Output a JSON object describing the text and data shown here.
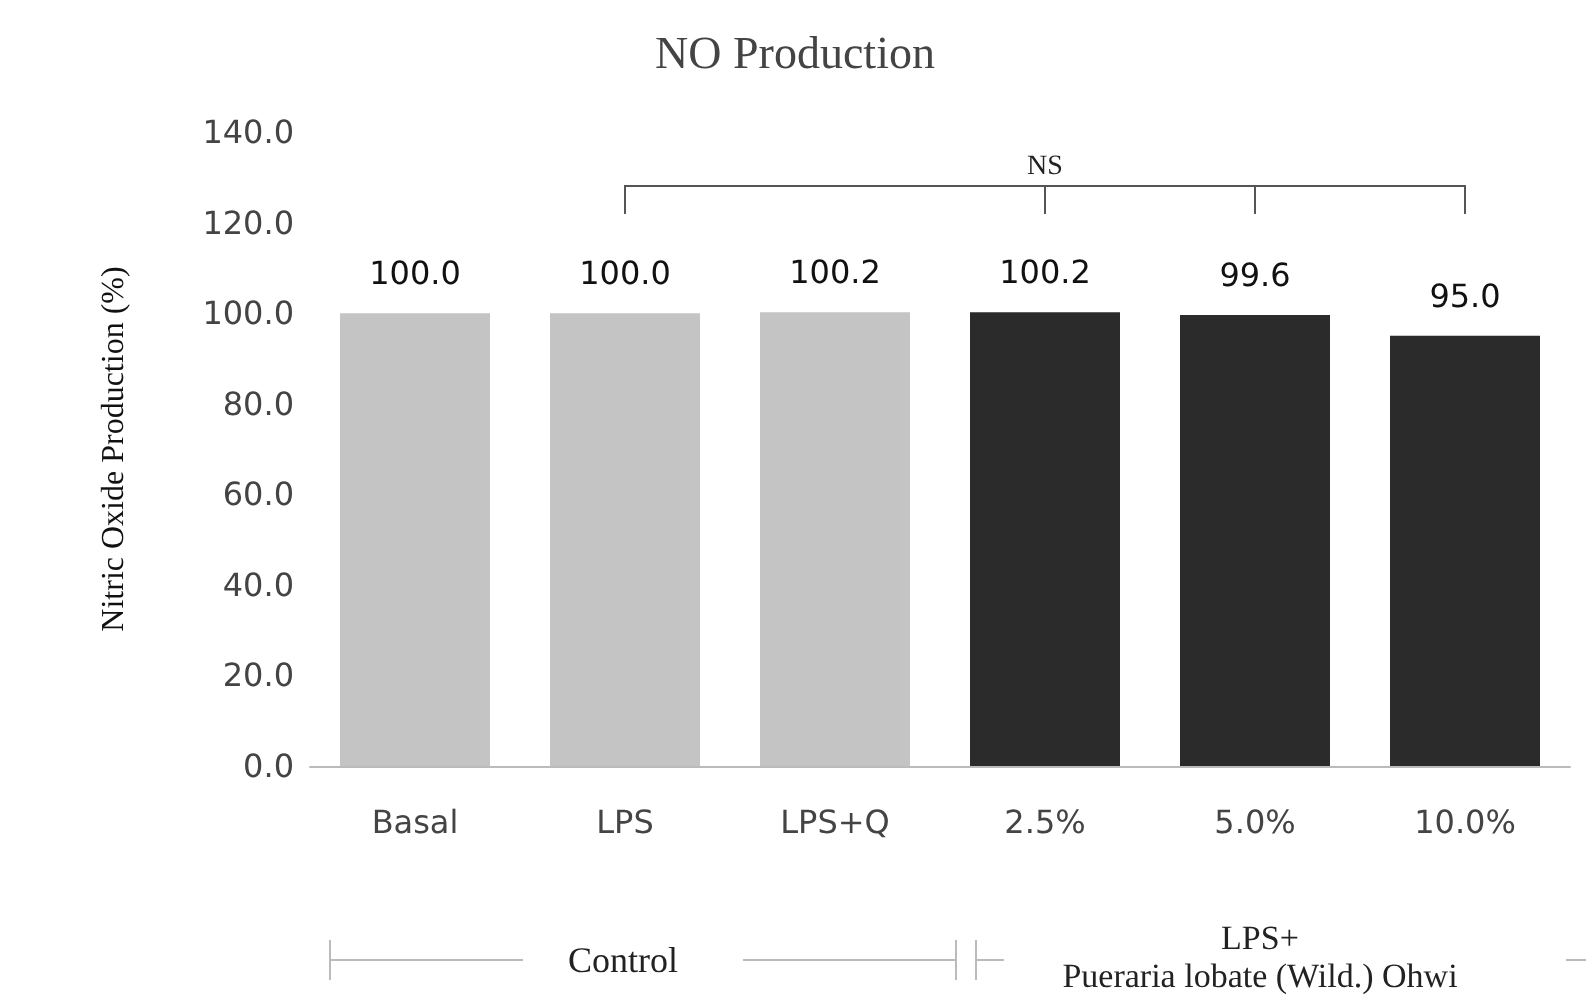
{
  "chart_data": {
    "type": "bar",
    "title": "NO Production",
    "ylabel": "Nitric Oxide Production (%)",
    "categories": [
      "Basal",
      "LPS",
      "LPS+Q",
      "2.5%",
      "5.0%",
      "10.0%"
    ],
    "values": [
      100.0,
      100.0,
      100.2,
      100.2,
      99.6,
      95.0
    ],
    "value_labels": [
      "100.0",
      "100.0",
      "100.2",
      "100.2",
      "99.6",
      "95.0"
    ],
    "colors": [
      "#c4c4c4",
      "#c4c4c4",
      "#c4c4c4",
      "#2b2b2b",
      "#2b2b2b",
      "#2b2b2b"
    ],
    "ylim": [
      0,
      140
    ],
    "yticks": [
      {
        "value": 0,
        "label": "0.0"
      },
      {
        "value": 20,
        "label": "20.0"
      },
      {
        "value": 40,
        "label": "40.0"
      },
      {
        "value": 60,
        "label": "60.0"
      },
      {
        "value": 80,
        "label": "80.0"
      },
      {
        "value": 100,
        "label": "100.0"
      },
      {
        "value": 120,
        "label": "120.0"
      },
      {
        "value": 140,
        "label": "140.0"
      }
    ],
    "grid": false,
    "annotations": [
      "NS",
      "Control",
      "LPS+\nPueraria lobate (Wild.) Ohwi"
    ]
  }
}
